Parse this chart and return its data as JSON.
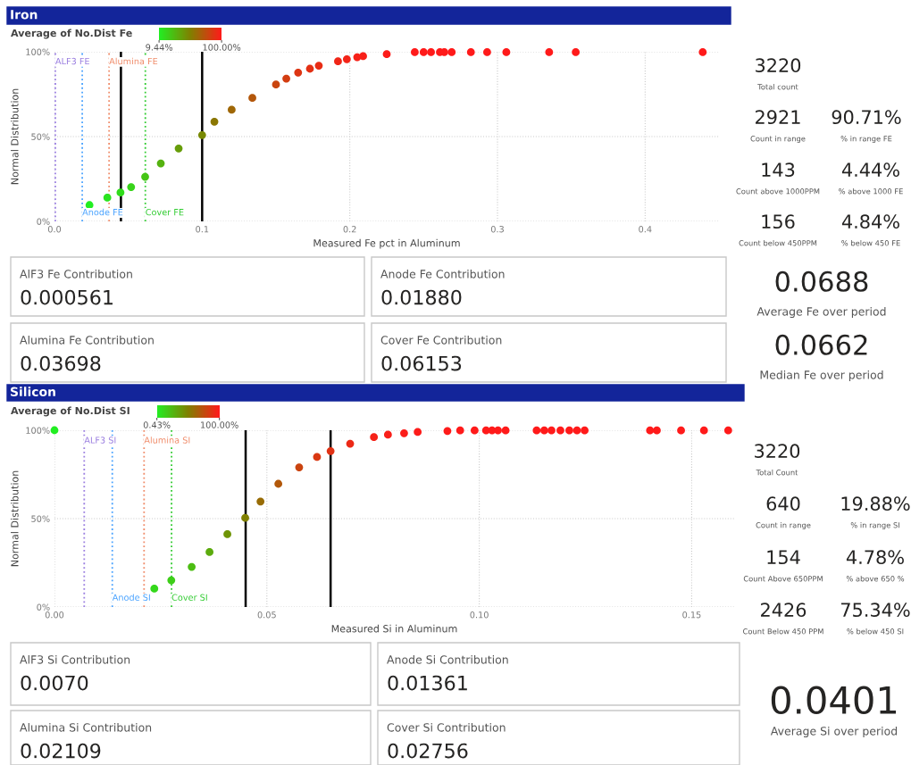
{
  "chart_data": [
    {
      "type": "scatter",
      "title": "Iron",
      "clabel": "Average of No.Dist Fe",
      "clim": [
        9.44,
        100
      ],
      "cticks": [
        {
          "value": 9.44,
          "label": "9.44%"
        },
        {
          "value": 100,
          "label": "100.00%"
        }
      ],
      "xlabel": "Measured Fe pct in Aluminum",
      "ylabel": "Normal Distribution",
      "marker": "circle",
      "grid": true,
      "xlim": [
        0,
        0.45
      ],
      "xticks": [
        {
          "value": 0,
          "label": "0.0"
        },
        0.1,
        0.2,
        0.3,
        0.4
      ],
      "ylim": [
        0,
        100
      ],
      "yticks": [
        {
          "value": 0,
          "label": "0%"
        },
        {
          "value": 50,
          "label": "50%"
        },
        {
          "value": 100,
          "label": "100%"
        }
      ],
      "x": [
        0.0237,
        0.0358,
        0.0447,
        0.0519,
        0.0614,
        0.072,
        0.0841,
        0.1,
        0.1083,
        0.12,
        0.134,
        0.15,
        0.157,
        0.165,
        0.173,
        0.179,
        0.192,
        0.198,
        0.205,
        0.209,
        0.225,
        0.244,
        0.25,
        0.255,
        0.261,
        0.264,
        0.269,
        0.282,
        0.293,
        0.306,
        0.335,
        0.353,
        0.439
      ],
      "values": [
        9.6,
        14,
        17,
        20.2,
        26.3,
        34.2,
        43,
        50.9,
        58.8,
        65.8,
        72.8,
        80.7,
        84.2,
        87.7,
        90,
        91.8,
        94.4,
        95.6,
        96.8,
        97.4,
        98.6,
        99.8,
        99.8,
        99.8,
        99.8,
        99.8,
        99.8,
        99.8,
        99.8,
        99.8,
        99.8,
        99.8,
        99.8
      ],
      "cvalues": [
        9.6,
        14,
        17,
        20.2,
        26.3,
        34.2,
        43,
        50.9,
        58.8,
        65.8,
        72.8,
        80.7,
        84.2,
        87.7,
        90,
        91.8,
        94.4,
        95.6,
        96.8,
        97.4,
        98.6,
        99.8,
        99.8,
        99.8,
        99.8,
        99.8,
        99.8,
        99.8,
        99.8,
        99.8,
        99.8,
        99.8,
        99.8
      ],
      "ref_lines": [
        {
          "axis": "x",
          "value": 0.000561,
          "label": "ALF3 FE",
          "color": "#9b7fe0",
          "line_style": "dotted"
        },
        {
          "axis": "x",
          "value": 0.0188,
          "label": "Anode FE",
          "color": "#4aa3ff",
          "line_style": "dotted"
        },
        {
          "axis": "x",
          "value": 0.03698,
          "label": "Alumina FE",
          "color": "#f08c6a",
          "line_style": "dotted"
        },
        {
          "axis": "x",
          "value": 0.06153,
          "label": "Cover FE",
          "color": "#33cc33",
          "line_style": "dotted"
        },
        {
          "axis": "x",
          "value": 0.045,
          "label": null,
          "color": "#000000",
          "line_style": "solid"
        },
        {
          "axis": "x",
          "value": 0.1,
          "label": null,
          "color": "#000000",
          "line_style": "solid"
        }
      ]
    },
    {
      "type": "other",
      "annotations": [
        "AlF3 Fe Contribution",
        "0.000561",
        "Anode Fe Contribution",
        "0.01880",
        "Alumina Fe Contribution",
        "0.03698",
        "Cover Fe Contribution",
        "0.06153"
      ]
    },
    {
      "type": "other",
      "annotations": [
        "3220",
        "Total count",
        "2921",
        "Count in range",
        "90.71%",
        "% in range FE",
        "143",
        "Count above 1000PPM",
        "4.44%",
        "% above 1000 FE",
        "156",
        "Count below 450PPM",
        "4.84%",
        "% below 450 FE",
        "0.0688",
        "Average Fe over period",
        "0.0662",
        "Median Fe over period"
      ]
    },
    {
      "type": "scatter",
      "title": "Silicon",
      "clabel": "Average of No.Dist SI",
      "clim": [
        0.43,
        100
      ],
      "cticks": [
        {
          "value": 0.43,
          "label": "0.43%"
        },
        {
          "value": 100,
          "label": "100.00%"
        }
      ],
      "xlabel": "Measured Si in Aluminum",
      "ylabel": "Normal Distribution",
      "marker": "circle",
      "grid": true,
      "xlim": [
        0,
        0.16
      ],
      "xticks": [
        {
          "value": 0,
          "label": "0.00"
        },
        {
          "value": 0.05,
          "label": "0.05"
        },
        {
          "value": 0.1,
          "label": "0.10"
        },
        {
          "value": 0.15,
          "label": "0.15"
        }
      ],
      "ylim": [
        0,
        100
      ],
      "yticks": [
        {
          "value": 0,
          "label": "0%"
        },
        {
          "value": 50,
          "label": "50%"
        },
        {
          "value": 100,
          "label": "100%"
        }
      ],
      "x": [
        0.0,
        0.0235,
        0.0275,
        0.0323,
        0.0365,
        0.0407,
        0.0449,
        0.0485,
        0.0527,
        0.0576,
        0.0618,
        0.065,
        0.0696,
        0.0752,
        0.0785,
        0.0823,
        0.0855,
        0.0925,
        0.0955,
        0.0989,
        0.1016,
        0.103,
        0.1044,
        0.1062,
        0.1135,
        0.1153,
        0.117,
        0.1191,
        0.1212,
        0.123,
        0.1248,
        0.1402,
        0.1418,
        0.1475,
        0.1529,
        0.1586
      ],
      "values": [
        100,
        10.4,
        15.1,
        22.7,
        31.1,
        41.2,
        50.4,
        59.7,
        69.7,
        79,
        84.9,
        88.2,
        92.4,
        96.1,
        97.5,
        98.3,
        99,
        99.6,
        99.9,
        99.9,
        99.9,
        99.9,
        99.9,
        99.9,
        99.9,
        99.9,
        99.9,
        99.9,
        99.9,
        99.9,
        99.9,
        99.9,
        99.9,
        99.9,
        99.9,
        99.9
      ],
      "cvalues": [
        0.43,
        10.4,
        15.1,
        22.7,
        31.1,
        41.2,
        50.4,
        59.7,
        69.7,
        79,
        84.9,
        88.2,
        92.4,
        96.1,
        97.5,
        98.3,
        99,
        99.6,
        99.9,
        99.9,
        99.9,
        99.9,
        99.9,
        99.9,
        99.9,
        99.9,
        99.9,
        99.9,
        99.9,
        99.9,
        99.9,
        99.9,
        99.9,
        99.9,
        99.9,
        99.9
      ],
      "ref_lines": [
        {
          "axis": "x",
          "value": 0.007,
          "label": "ALF3 SI",
          "color": "#9b7fe0",
          "line_style": "dotted"
        },
        {
          "axis": "x",
          "value": 0.01361,
          "label": "Anode SI",
          "color": "#4aa3ff",
          "line_style": "dotted"
        },
        {
          "axis": "x",
          "value": 0.02109,
          "label": "Alumina SI",
          "color": "#f08c6a",
          "line_style": "dotted"
        },
        {
          "axis": "x",
          "value": 0.02756,
          "label": "Cover SI",
          "color": "#33cc33",
          "line_style": "dotted"
        },
        {
          "axis": "x",
          "value": 0.045,
          "label": null,
          "color": "#000000",
          "line_style": "solid"
        },
        {
          "axis": "x",
          "value": 0.065,
          "label": null,
          "color": "#000000",
          "line_style": "solid"
        }
      ]
    },
    {
      "type": "other",
      "annotations": [
        "AlF3 Si Contribution",
        "0.0070",
        "Anode Si Contribution",
        "0.01361",
        "Alumina Si Contribution",
        "0.02109",
        "Cover Si Contribution",
        "0.02756"
      ]
    },
    {
      "type": "other",
      "annotations": [
        "3220",
        "Total Count",
        "640",
        "Count in range",
        "19.88%",
        "% in range SI",
        "154",
        "Count Above 650PPM",
        "4.78%",
        "% above 650 %",
        "2426",
        "Count Below 450 PPM",
        "75.34%",
        "% below 450 SI",
        "0.0401",
        "Average Si over period"
      ]
    }
  ]
}
